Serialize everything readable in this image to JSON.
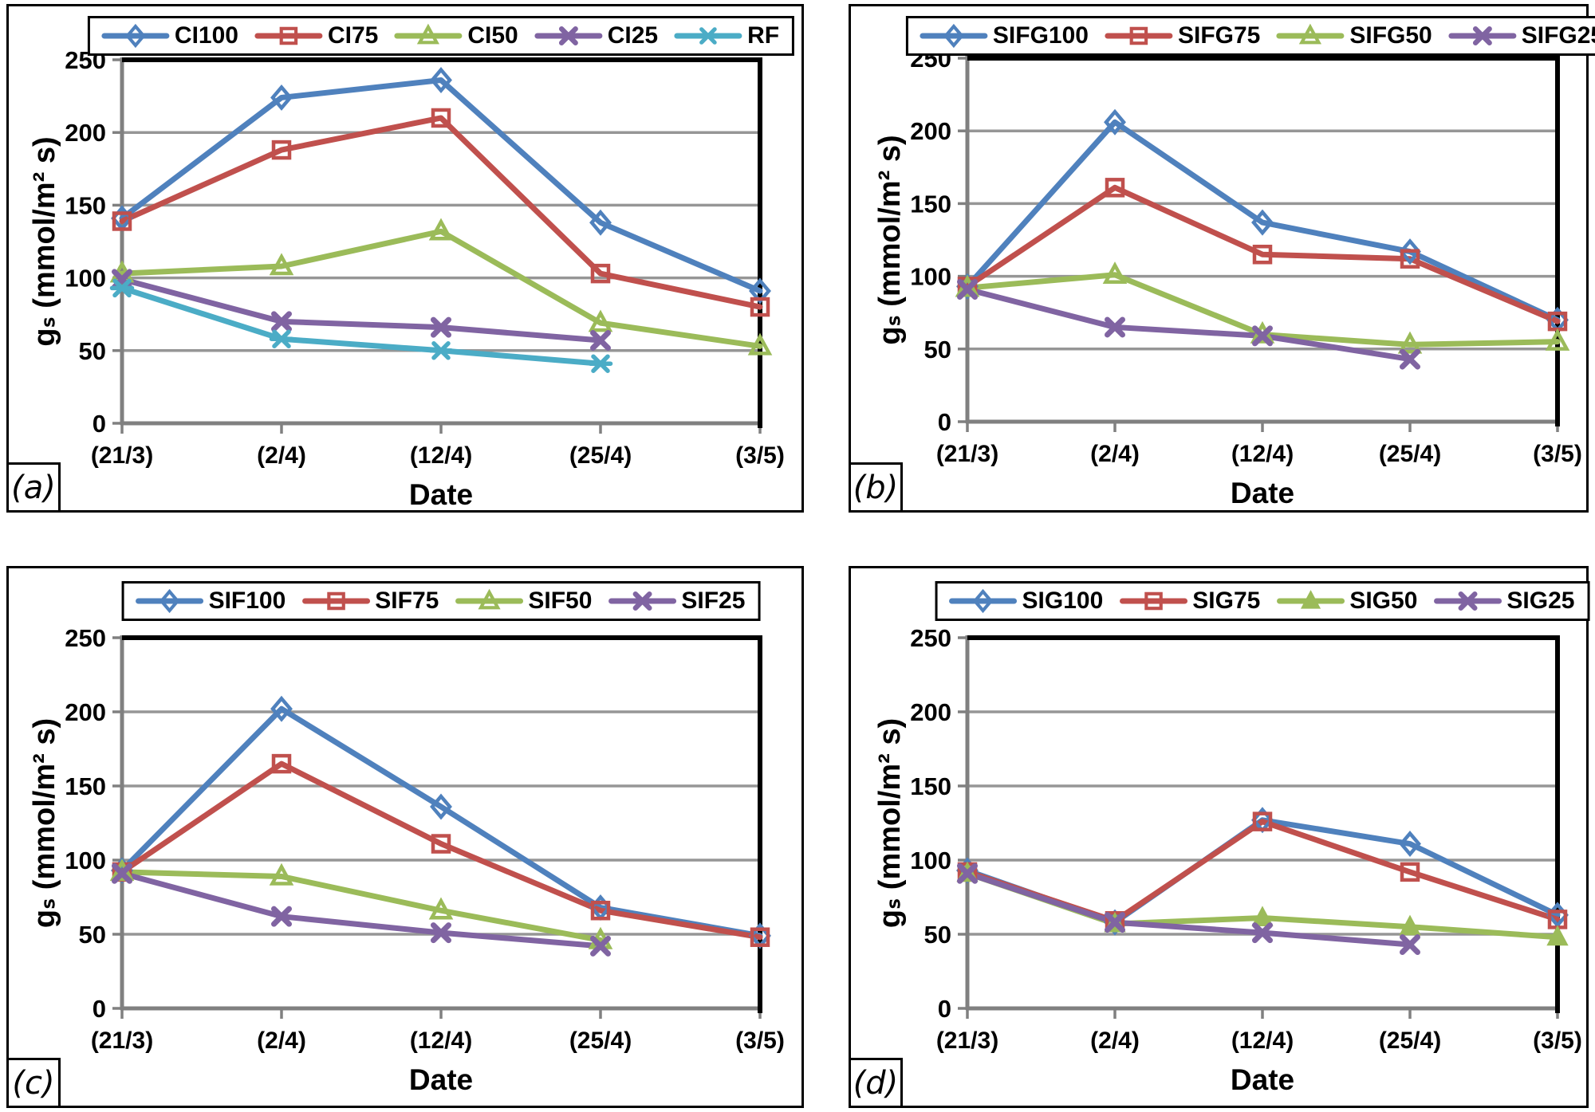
{
  "figure": {
    "xlabel": "Date",
    "ylabel": "gₛ (mmol/m² s)",
    "palette": {
      "blue": "#4F81BD",
      "red": "#C0504D",
      "green": "#9BBB59",
      "purple": "#8064A2",
      "cyan": "#4BACC6",
      "gridline": "#969696",
      "axis": "#808080",
      "plot_border": "#000000"
    }
  },
  "chart_data": [
    {
      "type": "line",
      "panel_label": "(a)",
      "xlabel": "Date",
      "ylabel": "gₛ (mmol/m² s)",
      "categories": [
        "(21/3)",
        "(2/4)",
        "(12/4)",
        "(25/4)",
        "(3/5)"
      ],
      "y_ticks": [
        0,
        50,
        100,
        150,
        200,
        250
      ],
      "ylim": [
        0,
        250
      ],
      "grid": true,
      "legend_position": "top-center",
      "series": [
        {
          "name": "CI100",
          "color": "#4F81BD",
          "marker": "diamond",
          "values": [
            141,
            224,
            236,
            138,
            91
          ]
        },
        {
          "name": "CI75",
          "color": "#C0504D",
          "marker": "square",
          "values": [
            139,
            188,
            210,
            103,
            80
          ]
        },
        {
          "name": "CI50",
          "color": "#9BBB59",
          "marker": "triangle",
          "values": [
            103,
            108,
            132,
            69,
            53
          ]
        },
        {
          "name": "CI25",
          "color": "#8064A2",
          "marker": "x",
          "values": [
            99,
            70,
            66,
            57,
            null
          ]
        },
        {
          "name": "RF",
          "color": "#4BACC6",
          "marker": "star",
          "values": [
            93,
            58,
            50,
            41,
            null
          ]
        }
      ]
    },
    {
      "type": "line",
      "panel_label": "(b)",
      "xlabel": "Date",
      "ylabel": "gₛ (mmol/m² s)",
      "categories": [
        "(21/3)",
        "(2/4)",
        "(12/4)",
        "(25/4)",
        "(3/5)"
      ],
      "y_ticks": [
        0,
        50,
        100,
        150,
        200,
        250
      ],
      "ylim": [
        0,
        250
      ],
      "grid": true,
      "legend_position": "top-center",
      "series": [
        {
          "name": "SIFG100",
          "color": "#4F81BD",
          "marker": "diamond",
          "values": [
            93,
            206,
            137,
            117,
            70
          ]
        },
        {
          "name": "SIFG75",
          "color": "#C0504D",
          "marker": "square",
          "values": [
            93,
            161,
            115,
            112,
            69
          ]
        },
        {
          "name": "SIFG50",
          "color": "#9BBB59",
          "marker": "triangle",
          "values": [
            92,
            101,
            60,
            53,
            55
          ]
        },
        {
          "name": "SIFG25",
          "color": "#8064A2",
          "marker": "x",
          "values": [
            91,
            65,
            59,
            43,
            null
          ]
        }
      ]
    },
    {
      "type": "line",
      "panel_label": "(c)",
      "xlabel": "Date",
      "ylabel": "gₛ (mmol/m² s)",
      "categories": [
        "(21/3)",
        "(2/4)",
        "(12/4)",
        "(25/4)",
        "(3/5)"
      ],
      "y_ticks": [
        0,
        50,
        100,
        150,
        200,
        250
      ],
      "ylim": [
        0,
        250
      ],
      "grid": true,
      "legend_position": "top-center",
      "series": [
        {
          "name": "SIF100",
          "color": "#4F81BD",
          "marker": "diamond",
          "values": [
            93,
            202,
            136,
            68,
            49
          ]
        },
        {
          "name": "SIF75",
          "color": "#C0504D",
          "marker": "square",
          "values": [
            92,
            165,
            111,
            66,
            48
          ]
        },
        {
          "name": "SIF50",
          "color": "#9BBB59",
          "marker": "triangle",
          "values": [
            92,
            89,
            66,
            46,
            null
          ]
        },
        {
          "name": "SIF25",
          "color": "#8064A2",
          "marker": "x",
          "values": [
            91,
            62,
            51,
            42,
            null
          ]
        }
      ]
    },
    {
      "type": "line",
      "panel_label": "(d)",
      "xlabel": "Date",
      "ylabel": "gₛ (mmol/m² s)",
      "categories": [
        "(21/3)",
        "(2/4)",
        "(12/4)",
        "(25/4)",
        "(3/5)"
      ],
      "y_ticks": [
        0,
        50,
        100,
        150,
        200,
        250
      ],
      "ylim": [
        0,
        250
      ],
      "grid": true,
      "legend_position": "top-center",
      "series": [
        {
          "name": "SIG100",
          "color": "#4F81BD",
          "marker": "diamond",
          "values": [
            93,
            58,
            127,
            111,
            63
          ]
        },
        {
          "name": "SIG75",
          "color": "#C0504D",
          "marker": "square",
          "values": [
            92,
            59,
            126,
            92,
            60
          ]
        },
        {
          "name": "SIG50",
          "color": "#9BBB59",
          "marker": "triangle-solid",
          "values": [
            91,
            57,
            61,
            55,
            48
          ]
        },
        {
          "name": "SIG25",
          "color": "#8064A2",
          "marker": "x",
          "values": [
            91,
            58,
            51,
            43,
            null
          ]
        }
      ]
    }
  ]
}
